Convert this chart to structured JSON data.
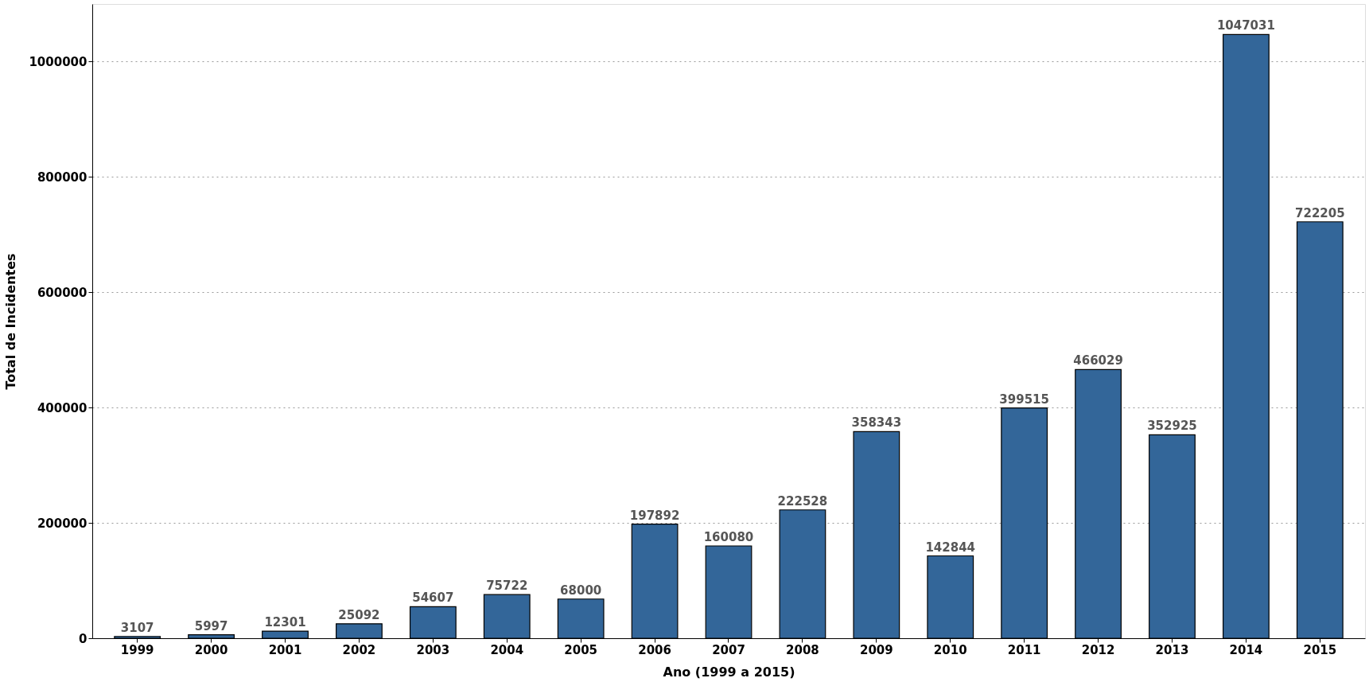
{
  "chart_data": {
    "type": "bar",
    "xlabel": "Ano (1999 a 2015)",
    "ylabel": "Total de Incidentes",
    "categories": [
      "1999",
      "2000",
      "2001",
      "2002",
      "2003",
      "2004",
      "2005",
      "2006",
      "2007",
      "2008",
      "2009",
      "2010",
      "2011",
      "2012",
      "2013",
      "2014",
      "2015"
    ],
    "values": [
      3107,
      5997,
      12301,
      25092,
      54607,
      75722,
      68000,
      197892,
      160080,
      222528,
      358343,
      142844,
      399515,
      466029,
      352925,
      1047031,
      722205
    ],
    "color": "#336699",
    "ylim": [
      0,
      1100000
    ],
    "yticks": [
      0,
      200000,
      400000,
      600000,
      800000,
      1000000
    ],
    "grid": "y",
    "data_labels": true
  }
}
